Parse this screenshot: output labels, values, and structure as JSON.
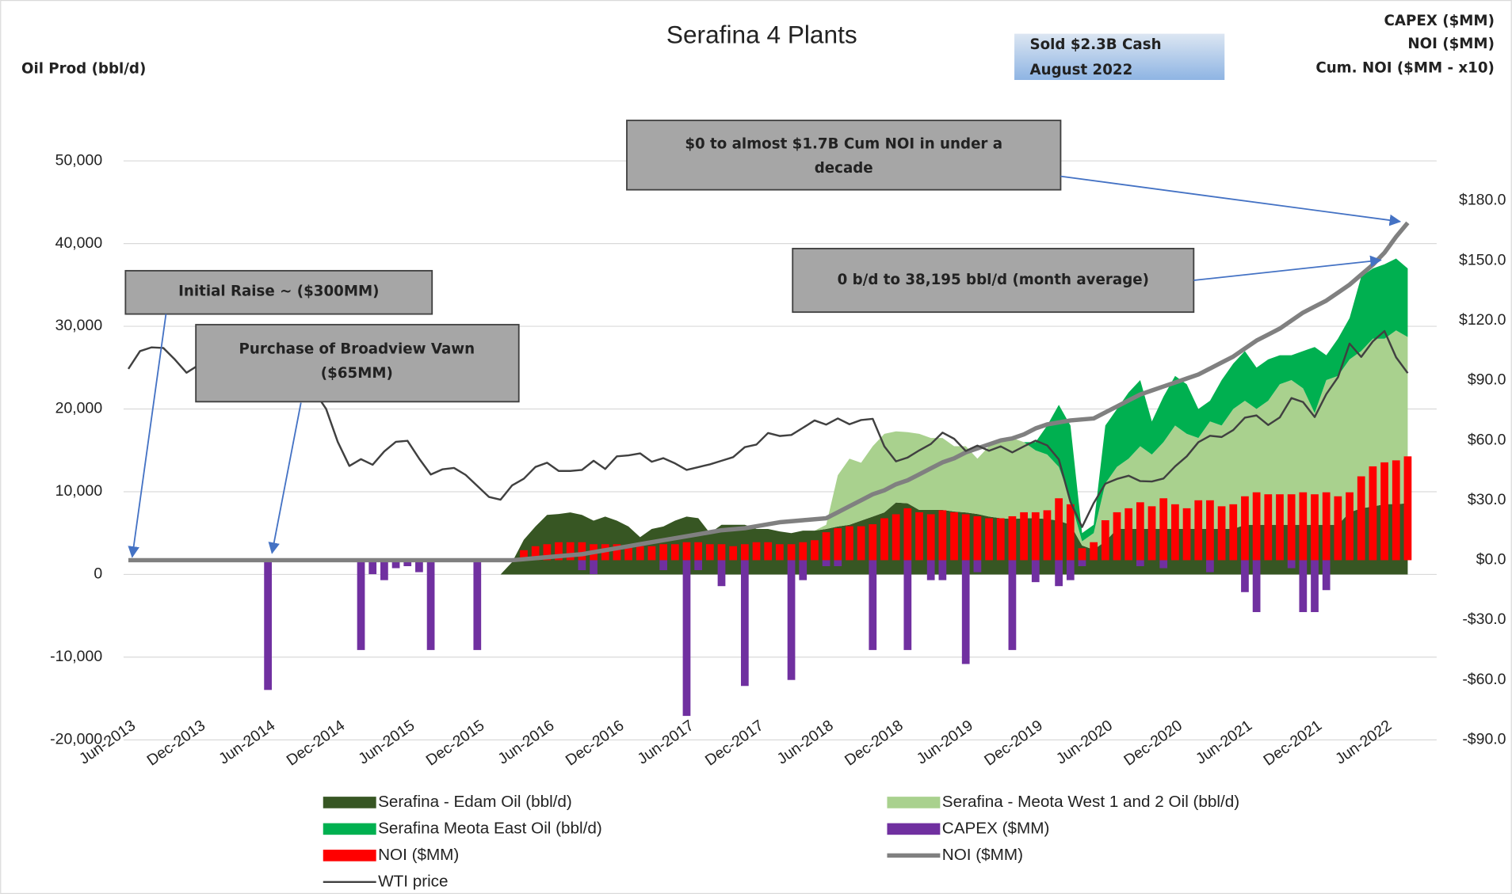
{
  "chart_data": {
    "type": "combo",
    "title": "Serafina 4 Plants",
    "y_label": "Oil Prod (bbl/d)",
    "y2_label": [
      "CAPEX ($MM)",
      "NOI ($MM)",
      "Cum. NOI ($MM - x10)"
    ],
    "annotations": [
      {
        "text": [
          "Sold $2.3B Cash",
          "August 2022"
        ]
      },
      {
        "text": [
          "$0 to almost $1.7B Cum NOI in under a",
          "decade"
        ]
      },
      {
        "text": [
          "0 b/d to 38,195 bbl/d (month average)"
        ]
      },
      {
        "text": [
          "Initial Raise ~ ($300MM)"
        ]
      },
      {
        "text": [
          "Purchase of Broadview Vawn",
          "($65MM)"
        ]
      }
    ],
    "categories": [
      "Jun-2013",
      null,
      null,
      null,
      null,
      null,
      "Dec-2013",
      null,
      null,
      null,
      null,
      null,
      "Jun-2014",
      null,
      null,
      null,
      null,
      null,
      "Dec-2014",
      null,
      null,
      null,
      null,
      null,
      "Jun-2015",
      null,
      null,
      null,
      null,
      null,
      "Dec-2015",
      null,
      null,
      null,
      null,
      null,
      "Jun-2016",
      null,
      null,
      null,
      null,
      null,
      "Dec-2016",
      null,
      null,
      null,
      null,
      null,
      "Jun-2017",
      null,
      null,
      null,
      null,
      null,
      "Dec-2017",
      null,
      null,
      null,
      null,
      null,
      "Jun-2018",
      null,
      null,
      null,
      null,
      null,
      "Dec-2018",
      null,
      null,
      null,
      null,
      null,
      "Jun-2019",
      null,
      null,
      null,
      null,
      null,
      "Dec-2019",
      null,
      null,
      null,
      null,
      null,
      "Jun-2020",
      null,
      null,
      null,
      null,
      null,
      "Dec-2020",
      null,
      null,
      null,
      null,
      null,
      "Jun-2021",
      null,
      null,
      null,
      null,
      null,
      "Dec-2021",
      null,
      null,
      null,
      null,
      null,
      "Jun-2022",
      null,
      null
    ],
    "ylim": [
      -20000,
      50000
    ],
    "yticks": [
      {
        "value": -20000,
        "label": "-20,000"
      },
      {
        "value": -10000,
        "label": "-10,000"
      },
      0,
      {
        "value": 10000,
        "label": "10,000"
      },
      {
        "value": 20000,
        "label": "20,000"
      },
      {
        "value": 30000,
        "label": "30,000"
      },
      {
        "value": 40000,
        "label": "40,000"
      },
      {
        "value": 50000,
        "label": "50,000"
      }
    ],
    "y2lim": [
      -90,
      200
    ],
    "y2ticks": [
      {
        "value": -90,
        "label": "-$90.0"
      },
      {
        "value": -60,
        "label": "-$60.0"
      },
      {
        "value": -30,
        "label": "-$30.0"
      },
      {
        "value": 0,
        "label": "$0.0"
      },
      {
        "value": 30,
        "label": "$30.0"
      },
      {
        "value": 60,
        "label": "$60.0"
      },
      {
        "value": 90,
        "label": "$90.0"
      },
      {
        "value": 120,
        "label": "$120.0"
      },
      {
        "value": 150,
        "label": "$150.0"
      },
      {
        "value": 180,
        "label": "$180.0"
      }
    ],
    "grid": true,
    "stacked": true,
    "legend": "bottom",
    "series": [
      {
        "name": "Serafina - Edam Oil (bbl/d)",
        "type": "area",
        "color": "#375623",
        "values": [
          0,
          0,
          0,
          0,
          0,
          0,
          0,
          0,
          0,
          0,
          0,
          0,
          0,
          0,
          0,
          0,
          0,
          0,
          0,
          0,
          0,
          0,
          0,
          0,
          0,
          0,
          0,
          0,
          0,
          0,
          0,
          0,
          0,
          1500,
          4200,
          5800,
          7200,
          7300,
          7500,
          7200,
          6500,
          7000,
          6500,
          5800,
          4500,
          5500,
          5800,
          6500,
          7000,
          6800,
          5000,
          6000,
          6000,
          6000,
          5500,
          5500,
          5200,
          5000,
          5300,
          5300,
          5500,
          5800,
          6000,
          6500,
          7000,
          7500,
          8700,
          8600,
          7800,
          7800,
          7800,
          7600,
          7500,
          7300,
          7000,
          6800,
          6700,
          6800,
          6800,
          6700,
          6500,
          6000,
          3500,
          3000,
          4000,
          5500,
          5500,
          5500,
          5500,
          5500,
          5500,
          5500,
          5500,
          5500,
          5500,
          5500,
          6000,
          6000,
          6000,
          6000,
          6000,
          6000,
          6000,
          6000,
          6000,
          7500,
          8000,
          8200,
          8500,
          8500,
          8600
        ]
      },
      {
        "name": "Serafina - Meota West 1 and 2 Oil (bbl/d)",
        "type": "area",
        "color": "#a9d18e",
        "values": [
          0,
          0,
          0,
          0,
          0,
          0,
          0,
          0,
          0,
          0,
          0,
          0,
          0,
          0,
          0,
          0,
          0,
          0,
          0,
          0,
          0,
          0,
          0,
          0,
          0,
          0,
          0,
          0,
          0,
          0,
          0,
          0,
          0,
          0,
          0,
          0,
          0,
          0,
          0,
          0,
          0,
          0,
          0,
          0,
          0,
          0,
          0,
          0,
          0,
          0,
          0,
          0,
          0,
          0,
          0,
          0,
          0,
          0,
          0,
          0,
          500,
          6200,
          8000,
          7000,
          8500,
          9500,
          8600,
          8600,
          9200,
          8700,
          8700,
          7900,
          8000,
          6700,
          8500,
          9200,
          9800,
          9200,
          8200,
          7800,
          6500,
          3000,
          500,
          2000,
          7000,
          7500,
          8500,
          10000,
          9000,
          10500,
          12500,
          11500,
          11000,
          13000,
          12500,
          14500,
          15000,
          14000,
          15000,
          17000,
          17500,
          16500,
          13500,
          17500,
          18000,
          18500,
          19000,
          20300,
          20000,
          21000,
          20100
        ]
      },
      {
        "name": "Serafina Meota East Oil (bbl/d)",
        "type": "area",
        "color": "#00b050",
        "values": [
          0,
          0,
          0,
          0,
          0,
          0,
          0,
          0,
          0,
          0,
          0,
          0,
          0,
          0,
          0,
          0,
          0,
          0,
          0,
          0,
          0,
          0,
          0,
          0,
          0,
          0,
          0,
          0,
          0,
          0,
          0,
          0,
          0,
          0,
          0,
          0,
          0,
          0,
          0,
          0,
          0,
          0,
          0,
          0,
          0,
          0,
          0,
          0,
          0,
          0,
          0,
          0,
          0,
          0,
          0,
          0,
          0,
          0,
          0,
          0,
          0,
          0,
          0,
          0,
          0,
          0,
          0,
          0,
          0,
          0,
          0,
          0,
          0,
          0,
          0,
          0,
          0,
          0,
          1000,
          3500,
          7500,
          9000,
          1000,
          1000,
          7000,
          7000,
          8000,
          8000,
          4000,
          5500,
          6000,
          6000,
          3500,
          2500,
          5500,
          5500,
          6000,
          5000,
          5000,
          3500,
          3000,
          4500,
          8000,
          3000,
          4500,
          5000,
          9000,
          8500,
          9000,
          8695,
          8300
        ]
      },
      {
        "name": "CAPEX ($MM)",
        "type": "bar",
        "axis": "y2",
        "color": "#7030a0",
        "values": [
          null,
          null,
          null,
          null,
          null,
          null,
          null,
          null,
          null,
          null,
          null,
          null,
          -65,
          null,
          null,
          null,
          null,
          null,
          null,
          null,
          -45,
          -7,
          -10,
          -4,
          -3,
          -6,
          -45,
          null,
          null,
          null,
          -45,
          null,
          null,
          null,
          null,
          null,
          null,
          null,
          null,
          -5,
          -7,
          null,
          null,
          null,
          null,
          null,
          -5,
          null,
          -78,
          -5,
          null,
          -13,
          null,
          -63,
          null,
          null,
          null,
          -60,
          -10,
          null,
          -3,
          -3,
          null,
          null,
          -45,
          null,
          null,
          -45,
          null,
          -10,
          -10,
          null,
          -52,
          -6,
          null,
          null,
          -45,
          null,
          -11,
          null,
          -13,
          -10,
          -3,
          null,
          null,
          null,
          null,
          -3,
          null,
          -4,
          null,
          null,
          null,
          -6,
          null,
          null,
          -16,
          -26,
          null,
          null,
          -4,
          -26,
          -26,
          -15,
          null,
          null,
          null,
          null,
          null,
          null,
          null
        ]
      },
      {
        "name": "NOI ($MM)",
        "type": "bar",
        "axis": "y2",
        "color": "#ff0000",
        "values": [
          null,
          null,
          null,
          null,
          null,
          null,
          null,
          null,
          null,
          null,
          null,
          null,
          null,
          null,
          null,
          null,
          null,
          null,
          null,
          null,
          null,
          null,
          null,
          null,
          null,
          null,
          null,
          null,
          null,
          null,
          null,
          null,
          null,
          null,
          5,
          7,
          8,
          9,
          9,
          9,
          8,
          8,
          8,
          7,
          7,
          7,
          8,
          8,
          9,
          9,
          8,
          8,
          7,
          8,
          9,
          9,
          8,
          8,
          9,
          10,
          14,
          16,
          17,
          17,
          18,
          21,
          23,
          26,
          24,
          23,
          25,
          24,
          23,
          22,
          21,
          21,
          22,
          24,
          24,
          25,
          31,
          28,
          6,
          9,
          20,
          24,
          26,
          29,
          27,
          31,
          28,
          26,
          30,
          30,
          27,
          28,
          32,
          34,
          33,
          33,
          33,
          34,
          33,
          34,
          32,
          34,
          42,
          47,
          49,
          50,
          52
        ]
      },
      {
        "name": "NOI ($MM)",
        "type": "line",
        "axis": "y2",
        "color": "#808080",
        "values": [
          0,
          0,
          0,
          0,
          0,
          0,
          0,
          0,
          0,
          0,
          0,
          0,
          0,
          0,
          0,
          0,
          0,
          0,
          0,
          0,
          0,
          0,
          0,
          0,
          0,
          0,
          0,
          0,
          0,
          0,
          0,
          0,
          0,
          0,
          0.5,
          1,
          1.5,
          2,
          2.5,
          3,
          4,
          5,
          6,
          7,
          8,
          9,
          10,
          11,
          12,
          13,
          14,
          15,
          15.5,
          16,
          17,
          18,
          19,
          19.5,
          20,
          20.5,
          21,
          24,
          27,
          30,
          33,
          35,
          38,
          40,
          43,
          46,
          49,
          51,
          54,
          56,
          58,
          60,
          61,
          63,
          66,
          68,
          69,
          70,
          70.5,
          71,
          74,
          77,
          80,
          83,
          85,
          87,
          89,
          91,
          93,
          96,
          99,
          102,
          106,
          110,
          113,
          116,
          120,
          124,
          127,
          130,
          134,
          138,
          143,
          148,
          154,
          162,
          169
        ]
      },
      {
        "name": "WTI price",
        "type": "line",
        "axis": "y2",
        "color": "#404040",
        "values": [
          95.8,
          104.7,
          106.6,
          106.3,
          100.5,
          93.9,
          97.6,
          94.6,
          100.8,
          100.8,
          102.1,
          102.2,
          105.8,
          103.6,
          96.5,
          93.2,
          84.4,
          75.8,
          59.3,
          47.2,
          50.6,
          47.8,
          54.5,
          59.3,
          59.8,
          50.9,
          42.9,
          45.5,
          46.2,
          42.7,
          37.2,
          31.7,
          30.3,
          37.5,
          40.8,
          46.7,
          48.8,
          44.7,
          44.7,
          45.2,
          49.8,
          45.7,
          52.0,
          52.5,
          53.5,
          49.3,
          51.1,
          48.5,
          45.2,
          46.6,
          48.0,
          49.8,
          51.6,
          56.6,
          57.9,
          63.7,
          62.2,
          62.7,
          66.3,
          70.0,
          67.9,
          71.0,
          68.1,
          70.2,
          70.8,
          57.0,
          49.5,
          51.4,
          55.0,
          58.2,
          63.9,
          60.8,
          54.7,
          57.4,
          54.8,
          57.0,
          54.0,
          57.0,
          59.9,
          57.5,
          50.5,
          29.2,
          16.6,
          28.6,
          38.3,
          40.7,
          42.3,
          39.6,
          39.4,
          40.9,
          47.0,
          52.0,
          59.1,
          62.3,
          61.7,
          65.2,
          71.4,
          72.5,
          67.7,
          71.5,
          81.2,
          79.2,
          71.7,
          83.2,
          91.6,
          108.5,
          101.8,
          109.6,
          114.8,
          101.6,
          93.7
        ]
      }
    ]
  }
}
